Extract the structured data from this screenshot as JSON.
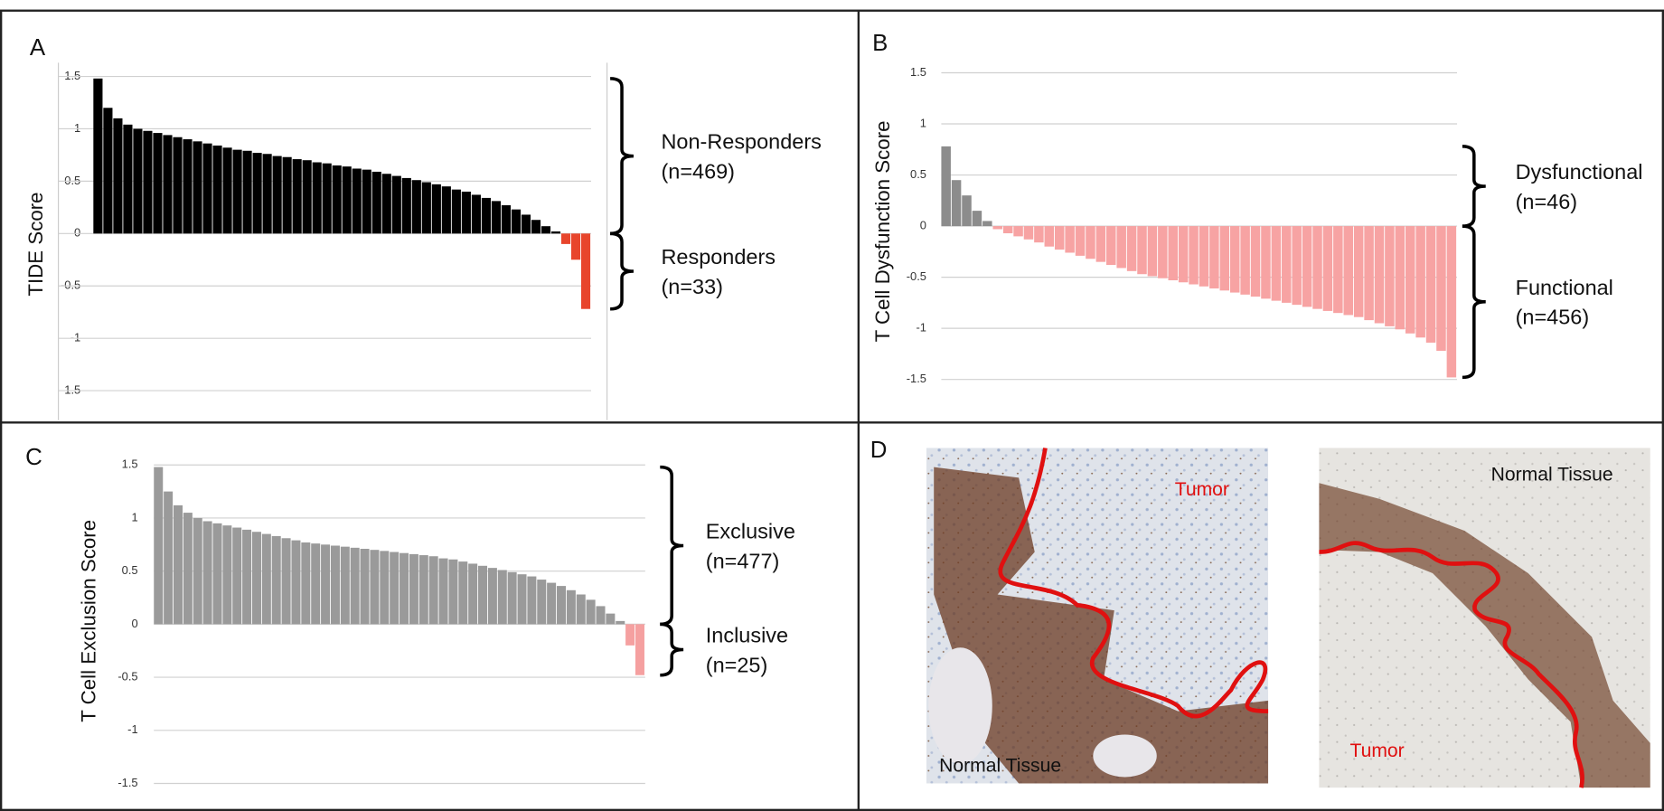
{
  "chart_data": [
    {
      "type": "bar",
      "label": "A",
      "ylabel": "TIDE Score",
      "values": [
        1.48,
        1.2,
        1.1,
        1.04,
        1.0,
        0.98,
        0.96,
        0.94,
        0.92,
        0.9,
        0.88,
        0.86,
        0.84,
        0.82,
        0.8,
        0.79,
        0.77,
        0.76,
        0.74,
        0.73,
        0.71,
        0.7,
        0.68,
        0.67,
        0.65,
        0.64,
        0.62,
        0.61,
        0.59,
        0.57,
        0.55,
        0.53,
        0.51,
        0.49,
        0.47,
        0.45,
        0.42,
        0.4,
        0.37,
        0.34,
        0.31,
        0.27,
        0.23,
        0.18,
        0.13,
        0.07,
        0.02,
        -0.1,
        -0.25,
        -0.72
      ],
      "positive_color": "#000000",
      "negative_color": "#e8452c",
      "ylim": [
        -1.6,
        1.55
      ],
      "yticks": [
        1.5,
        1,
        0.5,
        0,
        -0.5,
        -1,
        -1.5
      ],
      "grid": true,
      "brackets": [
        {
          "lines": [
            "Non-Responders",
            "(n=469)"
          ]
        },
        {
          "lines": [
            "Responders",
            "(n=33)"
          ]
        }
      ]
    },
    {
      "type": "bar",
      "label": "B",
      "ylabel": "T Cell Dysfunction Score",
      "values": [
        0.78,
        0.45,
        0.3,
        0.15,
        0.05,
        -0.03,
        -0.07,
        -0.1,
        -0.13,
        -0.16,
        -0.2,
        -0.23,
        -0.26,
        -0.29,
        -0.32,
        -0.35,
        -0.38,
        -0.41,
        -0.44,
        -0.47,
        -0.49,
        -0.51,
        -0.53,
        -0.55,
        -0.57,
        -0.59,
        -0.61,
        -0.63,
        -0.65,
        -0.67,
        -0.69,
        -0.71,
        -0.73,
        -0.75,
        -0.77,
        -0.79,
        -0.81,
        -0.83,
        -0.85,
        -0.87,
        -0.89,
        -0.92,
        -0.95,
        -0.98,
        -1.01,
        -1.05,
        -1.09,
        -1.14,
        -1.22,
        -1.48
      ],
      "positive_color": "#8c8c8c",
      "negative_color": "#f7a3a3",
      "ylim": [
        -1.55,
        1.6
      ],
      "yticks": [
        1.5,
        1,
        0.5,
        0,
        -0.5,
        -1,
        -1.5
      ],
      "grid": true,
      "brackets": [
        {
          "lines": [
            "Dysfunctional",
            "(n=46)"
          ]
        },
        {
          "lines": [
            "Functional",
            "(n=456)"
          ]
        }
      ]
    },
    {
      "type": "bar",
      "label": "C",
      "ylabel": "T Cell Exclusion Score",
      "values": [
        1.48,
        1.25,
        1.12,
        1.05,
        1.0,
        0.97,
        0.95,
        0.93,
        0.91,
        0.89,
        0.87,
        0.85,
        0.83,
        0.81,
        0.79,
        0.77,
        0.76,
        0.75,
        0.74,
        0.73,
        0.72,
        0.71,
        0.7,
        0.69,
        0.68,
        0.67,
        0.66,
        0.65,
        0.64,
        0.62,
        0.61,
        0.59,
        0.57,
        0.55,
        0.53,
        0.51,
        0.49,
        0.47,
        0.45,
        0.42,
        0.39,
        0.36,
        0.32,
        0.28,
        0.23,
        0.17,
        0.1,
        0.03,
        -0.2,
        -0.48
      ],
      "positive_color": "#9a9a9a",
      "negative_color": "#f5a0a0",
      "ylim": [
        -1.6,
        1.55
      ],
      "yticks": [
        1.5,
        1,
        0.5,
        0,
        -0.5,
        -1,
        -1.5
      ],
      "grid": true,
      "brackets": [
        {
          "lines": [
            "Exclusive",
            "(n=477)"
          ]
        },
        {
          "lines": [
            "Inclusive",
            "(n=25)"
          ]
        }
      ]
    }
  ],
  "images": {
    "label": "D",
    "left": {
      "tumor": "Tumor",
      "normal": "Normal Tissue"
    },
    "right": {
      "tumor": "Tumor",
      "normal": "Normal Tissue"
    }
  }
}
